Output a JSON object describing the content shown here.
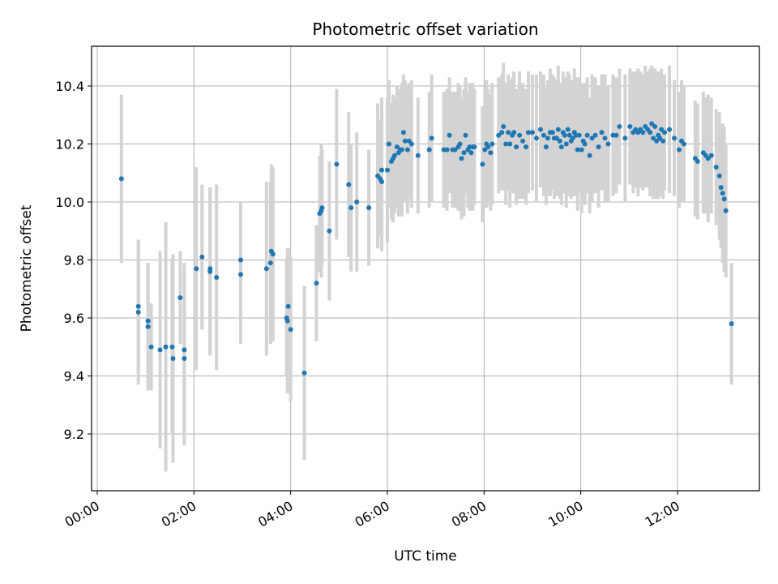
{
  "chart_data": {
    "type": "scatter",
    "title": "Photometric offset variation",
    "xlabel": "UTC time",
    "ylabel": "Photometric offset",
    "x_tick_labels": [
      "00:00",
      "02:00",
      "04:00",
      "06:00",
      "08:00",
      "10:00",
      "12:00"
    ],
    "y_tick_labels": [
      "9.2",
      "9.4",
      "9.6",
      "9.8",
      "10.0",
      "10.2",
      "10.4"
    ],
    "xlim": [
      "00:00",
      "13:45"
    ],
    "ylim": [
      9.0,
      10.54
    ],
    "grid": true,
    "legend": "none",
    "colors": {
      "point": "#1f77b4",
      "errorbar": "#d3d3d3",
      "grid": "#b0b0b0"
    },
    "series": [
      {
        "marker": "point",
        "error_bars": true,
        "points": [
          [
            "00:30",
            10.08,
            0.29
          ],
          [
            "00:51",
            9.64,
            0.23
          ],
          [
            "00:51",
            9.62,
            0.25
          ],
          [
            "01:03",
            9.59,
            0.2
          ],
          [
            "01:03",
            9.57,
            0.22
          ],
          [
            "01:07",
            9.5,
            0.15
          ],
          [
            "01:18",
            9.49,
            0.34
          ],
          [
            "01:25",
            9.5,
            0.43
          ],
          [
            "01:33",
            9.5,
            0.3
          ],
          [
            "01:34",
            9.46,
            0.36
          ],
          [
            "01:43",
            9.67,
            0.16
          ],
          [
            "01:48",
            9.49,
            0.3
          ],
          [
            "01:48",
            9.46,
            0.3
          ],
          [
            "02:03",
            9.77,
            0.35
          ],
          [
            "02:10",
            9.81,
            0.25
          ],
          [
            "02:20",
            9.77,
            0.28
          ],
          [
            "02:20",
            9.76,
            0.29
          ],
          [
            "02:28",
            9.74,
            0.32
          ],
          [
            "02:58",
            9.8,
            0.2
          ],
          [
            "02:58",
            9.75,
            0.24
          ],
          [
            "03:30",
            9.77,
            0.3
          ],
          [
            "03:35",
            9.79,
            0.28
          ],
          [
            "03:36",
            9.83,
            0.3
          ],
          [
            "03:38",
            9.82,
            0.3
          ],
          [
            "03:55",
            9.6,
            0.2
          ],
          [
            "03:57",
            9.64,
            0.2
          ],
          [
            "03:56",
            9.59,
            0.25
          ],
          [
            "04:00",
            9.56,
            0.25
          ],
          [
            "04:17",
            9.41,
            0.3
          ],
          [
            "04:32",
            9.72,
            0.2
          ],
          [
            "04:36",
            9.96,
            0.2
          ],
          [
            "04:38",
            9.97,
            0.23
          ],
          [
            "04:39",
            9.98,
            0.2
          ],
          [
            "04:48",
            9.9,
            0.24
          ],
          [
            "04:57",
            10.13,
            0.26
          ],
          [
            "05:12",
            10.06,
            0.25
          ],
          [
            "05:15",
            9.98,
            0.22
          ],
          [
            "05:22",
            10.0,
            0.24
          ],
          [
            "05:37",
            9.98,
            0.2
          ],
          [
            "05:48",
            10.09,
            0.25
          ],
          [
            "05:51",
            10.08,
            0.2
          ],
          [
            "05:53",
            10.11,
            0.25
          ],
          [
            "05:53",
            10.07,
            0.24
          ],
          [
            "06:00",
            10.11,
            0.25
          ],
          [
            "06:02",
            10.2,
            0.22
          ],
          [
            "06:05",
            10.14,
            0.2
          ],
          [
            "06:07",
            10.15,
            0.22
          ],
          [
            "06:09",
            10.16,
            0.2
          ],
          [
            "06:12",
            10.19,
            0.21
          ],
          [
            "06:14",
            10.17,
            0.22
          ],
          [
            "06:16",
            10.18,
            0.2
          ],
          [
            "06:18",
            10.18,
            0.23
          ],
          [
            "06:20",
            10.24,
            0.2
          ],
          [
            "06:22",
            10.21,
            0.21
          ],
          [
            "06:25",
            10.18,
            0.22
          ],
          [
            "06:27",
            10.21,
            0.2
          ],
          [
            "06:30",
            10.2,
            0.22
          ],
          [
            "06:38",
            10.16,
            0.2
          ],
          [
            "06:52",
            10.18,
            0.2
          ],
          [
            "06:55",
            10.22,
            0.22
          ],
          [
            "07:10",
            10.18,
            0.2
          ],
          [
            "07:14",
            10.18,
            0.21
          ],
          [
            "07:17",
            10.23,
            0.2
          ],
          [
            "07:21",
            10.18,
            0.2
          ],
          [
            "07:24",
            10.18,
            0.2
          ],
          [
            "07:28",
            10.19,
            0.22
          ],
          [
            "07:30",
            10.2,
            0.2
          ],
          [
            "07:32",
            10.15,
            0.21
          ],
          [
            "07:35",
            10.17,
            0.22
          ],
          [
            "07:37",
            10.23,
            0.2
          ],
          [
            "07:40",
            10.18,
            0.2
          ],
          [
            "07:42",
            10.19,
            0.22
          ],
          [
            "07:44",
            10.17,
            0.2
          ],
          [
            "07:46",
            10.19,
            0.22
          ],
          [
            "07:48",
            10.19,
            0.2
          ],
          [
            "07:58",
            10.13,
            0.2
          ],
          [
            "08:01",
            10.18,
            0.2
          ],
          [
            "08:03",
            10.2,
            0.22
          ],
          [
            "08:05",
            10.19,
            0.2
          ],
          [
            "08:08",
            10.17,
            0.2
          ],
          [
            "08:10",
            10.2,
            0.21
          ],
          [
            "08:18",
            10.23,
            0.2
          ],
          [
            "08:22",
            10.24,
            0.2
          ],
          [
            "08:24",
            10.26,
            0.22
          ],
          [
            "08:27",
            10.2,
            0.21
          ],
          [
            "08:30",
            10.24,
            0.2
          ],
          [
            "08:32",
            10.2,
            0.22
          ],
          [
            "08:35",
            10.23,
            0.2
          ],
          [
            "08:37",
            10.24,
            0.21
          ],
          [
            "08:40",
            10.19,
            0.2
          ],
          [
            "08:44",
            10.23,
            0.22
          ],
          [
            "08:48",
            10.21,
            0.2
          ],
          [
            "08:52",
            10.19,
            0.2
          ],
          [
            "08:55",
            10.24,
            0.21
          ],
          [
            "09:00",
            10.24,
            0.2
          ],
          [
            "09:05",
            10.22,
            0.22
          ],
          [
            "09:10",
            10.25,
            0.2
          ],
          [
            "09:14",
            10.23,
            0.21
          ],
          [
            "09:17",
            10.19,
            0.2
          ],
          [
            "09:19",
            10.22,
            0.2
          ],
          [
            "09:22",
            10.24,
            0.22
          ],
          [
            "09:25",
            10.24,
            0.2
          ],
          [
            "09:27",
            10.22,
            0.21
          ],
          [
            "09:30",
            10.22,
            0.2
          ],
          [
            "09:32",
            10.25,
            0.22
          ],
          [
            "09:34",
            10.21,
            0.2
          ],
          [
            "09:36",
            10.19,
            0.2
          ],
          [
            "09:38",
            10.24,
            0.21
          ],
          [
            "09:40",
            10.23,
            0.2
          ],
          [
            "09:42",
            10.2,
            0.22
          ],
          [
            "09:44",
            10.25,
            0.2
          ],
          [
            "09:46",
            10.23,
            0.21
          ],
          [
            "09:48",
            10.21,
            0.2
          ],
          [
            "09:50",
            10.22,
            0.2
          ],
          [
            "09:52",
            10.24,
            0.22
          ],
          [
            "09:54",
            10.23,
            0.2
          ],
          [
            "09:56",
            10.18,
            0.21
          ],
          [
            "09:58",
            10.23,
            0.2
          ],
          [
            "10:01",
            10.18,
            0.22
          ],
          [
            "10:03",
            10.21,
            0.2
          ],
          [
            "10:05",
            10.2,
            0.21
          ],
          [
            "10:08",
            10.23,
            0.2
          ],
          [
            "10:11",
            10.16,
            0.2
          ],
          [
            "10:14",
            10.22,
            0.22
          ],
          [
            "10:18",
            10.23,
            0.2
          ],
          [
            "10:22",
            10.19,
            0.21
          ],
          [
            "10:26",
            10.24,
            0.2
          ],
          [
            "10:30",
            10.22,
            0.22
          ],
          [
            "10:34",
            10.2,
            0.2
          ],
          [
            "10:40",
            10.23,
            0.21
          ],
          [
            "10:44",
            10.23,
            0.2
          ],
          [
            "10:48",
            10.26,
            0.2
          ],
          [
            "10:55",
            10.22,
            0.22
          ],
          [
            "11:01",
            10.26,
            0.2
          ],
          [
            "11:05",
            10.24,
            0.21
          ],
          [
            "11:08",
            10.25,
            0.2
          ],
          [
            "11:11",
            10.24,
            0.22
          ],
          [
            "11:14",
            10.25,
            0.2
          ],
          [
            "11:17",
            10.24,
            0.2
          ],
          [
            "11:20",
            10.26,
            0.21
          ],
          [
            "11:23",
            10.25,
            0.2
          ],
          [
            "11:26",
            10.24,
            0.22
          ],
          [
            "11:28",
            10.27,
            0.2
          ],
          [
            "11:30",
            10.22,
            0.21
          ],
          [
            "11:32",
            10.26,
            0.2
          ],
          [
            "11:34",
            10.21,
            0.2
          ],
          [
            "11:36",
            10.23,
            0.22
          ],
          [
            "11:38",
            10.22,
            0.2
          ],
          [
            "11:40",
            10.25,
            0.21
          ],
          [
            "11:42",
            10.21,
            0.2
          ],
          [
            "11:44",
            10.24,
            0.2
          ],
          [
            "11:50",
            10.25,
            0.22
          ],
          [
            "11:56",
            10.22,
            0.2
          ],
          [
            "12:02",
            10.18,
            0.2
          ],
          [
            "12:05",
            10.21,
            0.21
          ],
          [
            "12:08",
            10.2,
            0.2
          ],
          [
            "12:22",
            10.15,
            0.2
          ],
          [
            "12:25",
            10.14,
            0.2
          ],
          [
            "12:32",
            10.17,
            0.21
          ],
          [
            "12:35",
            10.16,
            0.2
          ],
          [
            "12:38",
            10.15,
            0.22
          ],
          [
            "12:42",
            10.16,
            0.2
          ],
          [
            "12:48",
            10.12,
            0.2
          ],
          [
            "12:52",
            10.09,
            0.22
          ],
          [
            "12:54",
            10.05,
            0.21
          ],
          [
            "12:56",
            10.03,
            0.24
          ],
          [
            "12:58",
            10.01,
            0.25
          ],
          [
            "13:00",
            9.97,
            0.23
          ],
          [
            "13:07",
            9.58,
            0.21
          ]
        ]
      }
    ]
  }
}
